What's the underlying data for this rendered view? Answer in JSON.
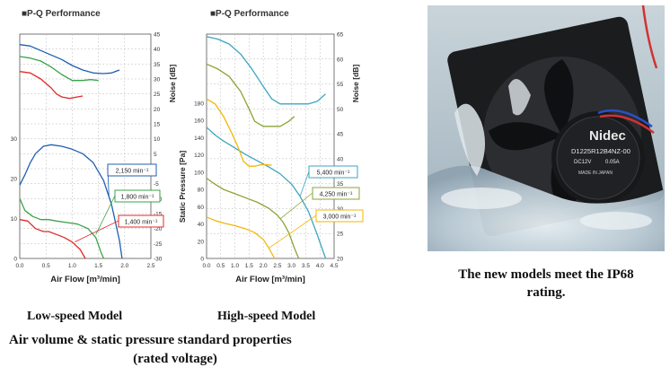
{
  "left_chart": {
    "heading": "■P-Q Performance",
    "model_caption": "Low-speed Model"
  },
  "right_chart": {
    "heading": "■P-Q Performance",
    "model_caption": "High-speed Model"
  },
  "photo": {
    "fan_label_line1": "D1225R12B4NZ-00",
    "fan_label_line2": "DC12V",
    "fan_label_line3": "0.05A",
    "fan_label_line4": "MADE IN JAPAN",
    "fan_brand": "Nidec",
    "caption_line1": "The new models meet the IP68",
    "caption_line2": "rating."
  },
  "bottom_caption": {
    "line1": "Air volume & static pressure standard properties",
    "line2": "(rated voltage)"
  },
  "colors": {
    "blue": "#1f5fae",
    "green": "#3aa34a",
    "red": "#e02a2a",
    "teal": "#3ca6c0",
    "olive": "#8aa436",
    "orange": "#f2b705"
  },
  "chart_data": [
    {
      "type": "line",
      "xlabel": "Air Flow [m³/min]",
      "ylabel": "",
      "y2label": "Noise [dB]",
      "xlim": [
        0,
        2.5
      ],
      "x_ticks": [
        "0.0",
        "0.5",
        "1.0",
        "1.5",
        "2.0",
        "2.5"
      ],
      "left_ticks": [
        "0",
        "10",
        "20",
        "30"
      ],
      "right_ticks": [
        "-30",
        "-25",
        "-20",
        "-15",
        "-10",
        "-5",
        "0",
        "5",
        "10",
        "15",
        "20",
        "25",
        "30",
        "35",
        "40",
        "45"
      ],
      "y2lim": [
        -30,
        45
      ],
      "series": [
        {
          "name": "2,150 min⁻¹",
          "kind": "pressure",
          "color": "#1f5fae",
          "x": [
            0,
            0.1,
            0.2,
            0.3,
            0.45,
            0.6,
            0.8,
            1.0,
            1.2,
            1.4,
            1.6,
            1.75,
            1.9,
            1.95
          ],
          "y": [
            -5.5,
            -2,
            2,
            5,
            7.5,
            8,
            7.5,
            6.5,
            5,
            2,
            -4,
            -12,
            -24,
            -30
          ]
        },
        {
          "name": "1,800 min⁻¹",
          "kind": "pressure",
          "color": "#3aa34a",
          "x": [
            0,
            0.1,
            0.25,
            0.4,
            0.55,
            0.7,
            0.9,
            1.1,
            1.3,
            1.45,
            1.55,
            1.6
          ],
          "y": [
            -10,
            -14,
            -16,
            -17,
            -17,
            -17.5,
            -18,
            -18.5,
            -20,
            -23,
            -28,
            -30
          ]
        },
        {
          "name": "1,400 min⁻¹",
          "kind": "pressure",
          "color": "#e02a2a",
          "x": [
            0,
            0.15,
            0.3,
            0.45,
            0.55,
            0.7,
            0.85,
            1.0,
            1.15,
            1.25
          ],
          "y": [
            -17,
            -17.5,
            -20,
            -21,
            -21,
            -22,
            -23,
            -24.5,
            -27,
            -30
          ]
        },
        {
          "kind": "noise",
          "color": "#1f5fae",
          "x": [
            0,
            0.2,
            0.4,
            0.6,
            0.8,
            1.0,
            1.2,
            1.4,
            1.6,
            1.75,
            1.9
          ],
          "y": [
            41.5,
            41,
            39.5,
            38,
            36.5,
            34.5,
            33,
            32,
            31.8,
            32,
            33
          ]
        },
        {
          "kind": "noise",
          "color": "#3aa34a",
          "x": [
            0,
            0.2,
            0.4,
            0.6,
            0.8,
            1.0,
            1.2,
            1.35,
            1.5
          ],
          "y": [
            37.5,
            37,
            36,
            34,
            31.5,
            29.5,
            29.5,
            29.8,
            29.5
          ]
        },
        {
          "kind": "noise",
          "color": "#e02a2a",
          "x": [
            0,
            0.2,
            0.4,
            0.6,
            0.7,
            0.8,
            0.95,
            1.1,
            1.2
          ],
          "y": [
            32.5,
            32,
            30,
            27,
            25,
            24,
            23.5,
            24,
            24.3
          ]
        }
      ]
    },
    {
      "type": "line",
      "xlabel": "Air Flow [m³/min]",
      "ylabel": "Static Pressure [Pa]",
      "y2label": "Noise [dB]",
      "xlim": [
        0,
        4.5
      ],
      "x_ticks": [
        "0.0",
        "0.5",
        "1.0",
        "1.5",
        "2.0",
        "2.5",
        "3.0",
        "3.5",
        "4.0",
        "4.5"
      ],
      "ylim": [
        0,
        260
      ],
      "left_ticks": [
        "0",
        "20",
        "40",
        "60",
        "80",
        "100",
        "120",
        "140",
        "160",
        "180"
      ],
      "right_ticks": [
        "20",
        "25",
        "30",
        "35",
        "40",
        "45",
        "50",
        "55",
        "60",
        "65"
      ],
      "y2lim": [
        20,
        65
      ],
      "series": [
        {
          "name": "5,400 min⁻¹",
          "kind": "pressure",
          "color": "#3ca6c0",
          "x": [
            0,
            0.3,
            0.6,
            1.0,
            1.4,
            1.8,
            2.2,
            2.6,
            3.0,
            3.3,
            3.6,
            3.9,
            4.2
          ],
          "y": [
            152,
            143,
            136,
            128,
            120,
            113,
            106,
            98,
            86,
            72,
            54,
            28,
            0
          ]
        },
        {
          "name": "4,250 min⁻¹",
          "kind": "pressure",
          "color": "#8aa436",
          "x": [
            0,
            0.3,
            0.6,
            1.0,
            1.4,
            1.8,
            2.2,
            2.5,
            2.7,
            2.9,
            3.1,
            3.25
          ],
          "y": [
            93,
            86,
            80,
            75,
            70,
            65,
            58,
            50,
            42,
            30,
            12,
            0
          ]
        },
        {
          "name": "3,000 min⁻¹",
          "kind": "pressure",
          "color": "#f2b705",
          "x": [
            0,
            0.3,
            0.6,
            1.0,
            1.4,
            1.7,
            2.0,
            2.2,
            2.4
          ],
          "y": [
            48,
            44,
            41,
            38,
            34,
            30,
            22,
            12,
            0
          ]
        },
        {
          "kind": "noise",
          "color": "#3ca6c0",
          "x": [
            0,
            0.4,
            0.8,
            1.2,
            1.6,
            2.0,
            2.3,
            2.6,
            3.0,
            3.3,
            3.6,
            3.9,
            4.2
          ],
          "y": [
            64.5,
            64,
            63,
            61,
            58,
            54.5,
            52,
            51,
            51,
            51,
            51,
            51.5,
            53
          ]
        },
        {
          "kind": "noise",
          "color": "#8aa436",
          "x": [
            0,
            0.4,
            0.8,
            1.2,
            1.5,
            1.7,
            2.0,
            2.3,
            2.6,
            2.9,
            3.1
          ],
          "y": [
            59,
            58,
            56.5,
            53.5,
            50,
            47.5,
            46.5,
            46.5,
            46.5,
            47.5,
            48.5
          ]
        },
        {
          "kind": "noise",
          "color": "#f2b705",
          "x": [
            0,
            0.3,
            0.6,
            0.9,
            1.1,
            1.3,
            1.5,
            1.7,
            1.9,
            2.1,
            2.3
          ],
          "y": [
            52,
            51,
            48.5,
            45,
            42.5,
            39.5,
            38.5,
            38.5,
            38.8,
            38.8,
            38.7
          ]
        }
      ]
    }
  ]
}
